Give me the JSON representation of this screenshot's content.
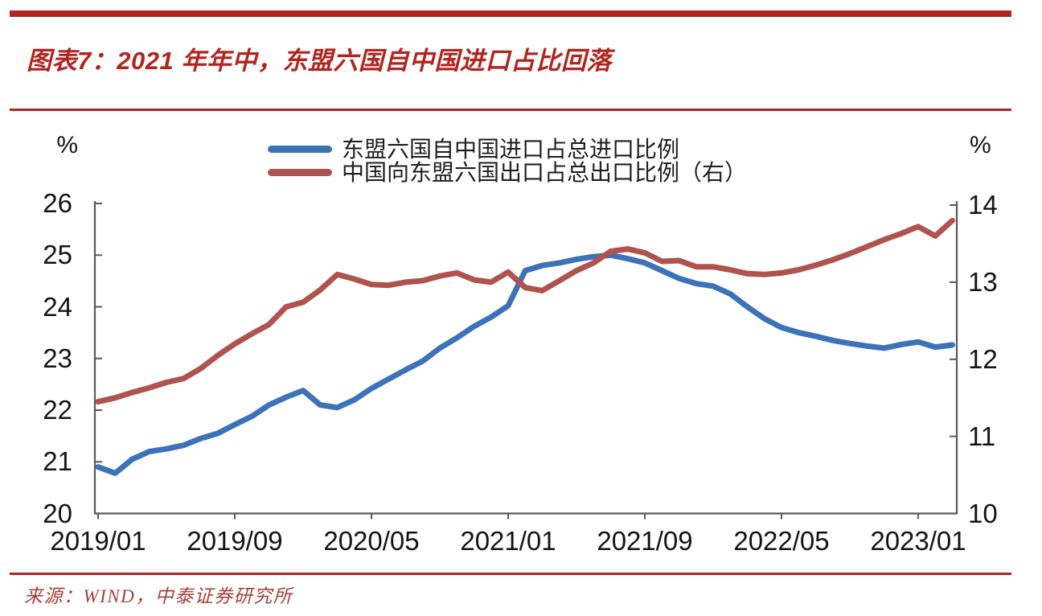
{
  "figure": {
    "title": "图表7：2021 年年中，东盟六国自中国进口占比回落",
    "source": "来源：WIND，中泰证券研究所"
  },
  "colors": {
    "accent_red": "#b3241f",
    "import_line_blue": "#3b72b9",
    "export_line_red": "#b0524e",
    "axis_line": "#595959",
    "axis_text": "#141414"
  },
  "chart_data": {
    "type": "line",
    "title": "图表7：2021 年年中，东盟六国自中国进口占比回落",
    "grid": false,
    "legend_position": "top-center",
    "x": [
      "2019/01",
      "2019/02",
      "2019/03",
      "2019/04",
      "2019/05",
      "2019/06",
      "2019/07",
      "2019/08",
      "2019/09",
      "2019/10",
      "2019/11",
      "2019/12",
      "2020/01",
      "2020/02",
      "2020/03",
      "2020/04",
      "2020/05",
      "2020/06",
      "2020/07",
      "2020/08",
      "2020/09",
      "2020/10",
      "2020/11",
      "2020/12",
      "2021/01",
      "2021/02",
      "2021/03",
      "2021/04",
      "2021/05",
      "2021/06",
      "2021/07",
      "2021/08",
      "2021/09",
      "2021/10",
      "2021/11",
      "2021/12",
      "2022/01",
      "2022/02",
      "2022/03",
      "2022/04",
      "2022/05",
      "2022/06",
      "2022/07",
      "2022/08",
      "2022/09",
      "2022/10",
      "2022/11",
      "2022/12",
      "2023/01",
      "2023/02",
      "2023/03"
    ],
    "x_tick_labels": [
      "2019/01",
      "2019/09",
      "2020/05",
      "2021/01",
      "2021/09",
      "2022/05",
      "2023/01"
    ],
    "left_axis": {
      "unit": "%",
      "min": 20,
      "max": 26,
      "ticks": [
        26,
        25,
        24,
        23,
        22,
        21,
        20
      ]
    },
    "right_axis": {
      "unit": "%",
      "min": 10,
      "max": 14,
      "ticks": [
        14,
        13,
        12,
        11,
        10
      ]
    },
    "series": [
      {
        "name": "东盟六国自中国进口占总进口比例",
        "axis": "left",
        "color": "#3b72b9",
        "values": [
          20.9,
          20.78,
          21.05,
          21.2,
          21.25,
          21.32,
          21.45,
          21.55,
          21.72,
          21.88,
          22.1,
          22.25,
          22.38,
          22.1,
          22.05,
          22.2,
          22.42,
          22.6,
          22.78,
          22.95,
          23.2,
          23.4,
          23.62,
          23.8,
          24.02,
          24.7,
          24.8,
          24.85,
          24.92,
          24.97,
          25.0,
          24.93,
          24.85,
          24.7,
          24.55,
          24.45,
          24.4,
          24.25,
          24.0,
          23.77,
          23.6,
          23.5,
          23.43,
          23.35,
          23.29,
          23.24,
          23.2,
          23.27,
          23.32,
          23.22,
          23.26
        ]
      },
      {
        "name": "中国向东盟六国出口占总出口比例（右）",
        "axis": "right",
        "color": "#b0524e",
        "values": [
          11.45,
          11.5,
          11.57,
          11.63,
          11.7,
          11.75,
          11.88,
          12.05,
          12.2,
          12.33,
          12.45,
          12.68,
          12.74,
          12.9,
          13.1,
          13.04,
          12.97,
          12.96,
          13.0,
          13.02,
          13.08,
          13.12,
          13.03,
          13.0,
          13.13,
          12.93,
          12.89,
          13.02,
          13.15,
          13.25,
          13.4,
          13.43,
          13.38,
          13.27,
          13.28,
          13.2,
          13.2,
          13.16,
          13.11,
          13.1,
          13.12,
          13.16,
          13.22,
          13.29,
          13.37,
          13.46,
          13.55,
          13.63,
          13.72,
          13.6,
          13.8
        ]
      }
    ]
  }
}
